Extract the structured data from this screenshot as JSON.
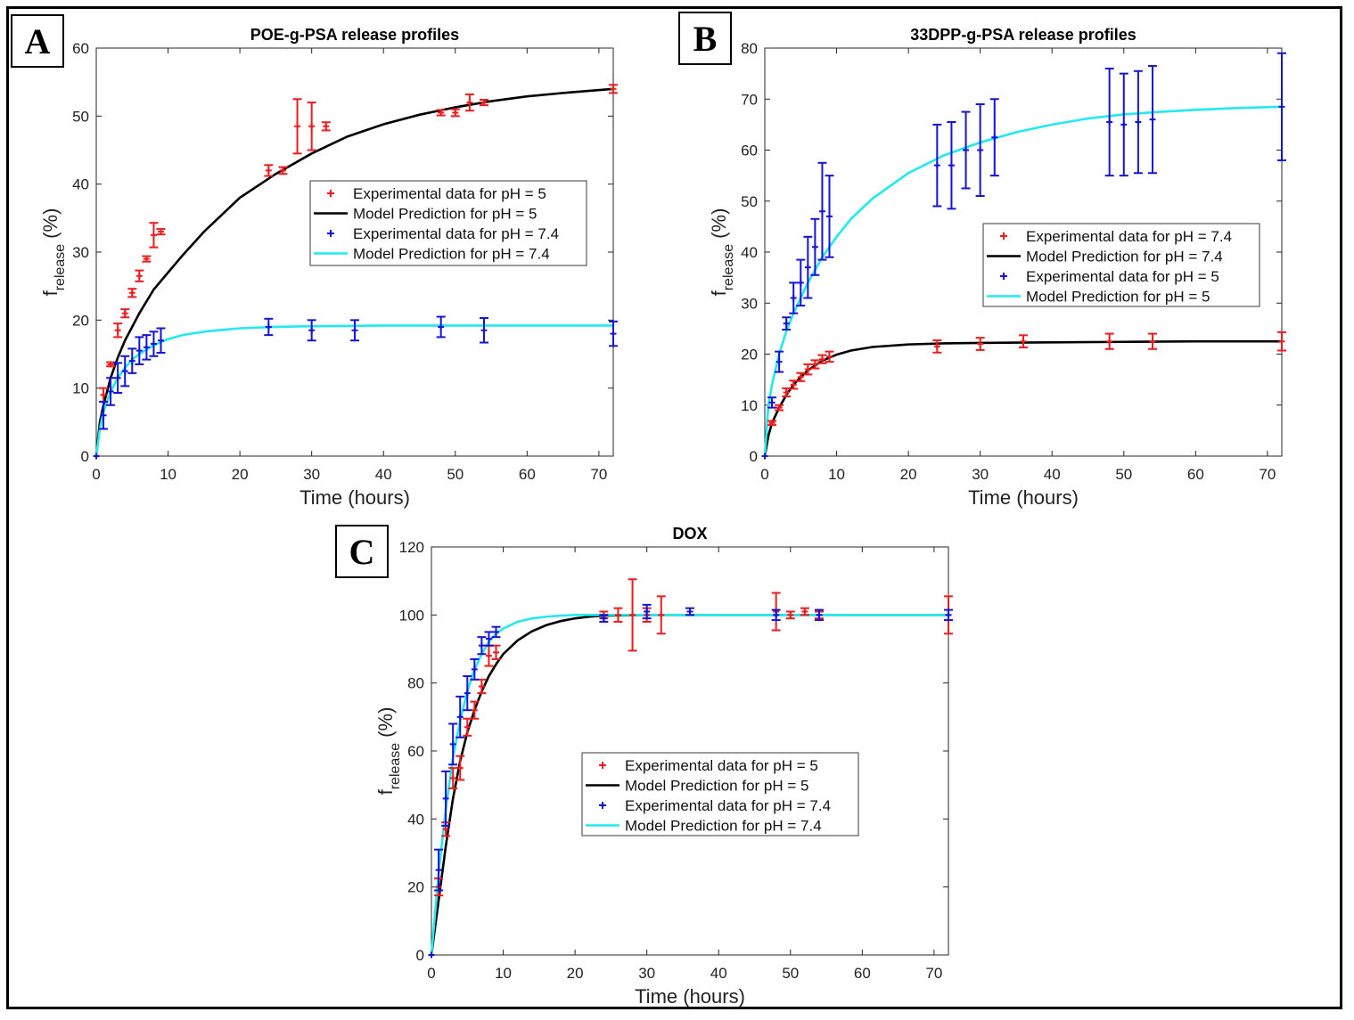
{
  "panels": [
    {
      "label": "A"
    },
    {
      "label": "B"
    },
    {
      "label": "C"
    }
  ],
  "colors": {
    "exp_red": "#ee1c1c",
    "model_black": "#000000",
    "exp_blue": "#1414d8",
    "model_cyan": "#22e8f0"
  },
  "chart_data": [
    {
      "type": "line",
      "title": "POE-g-PSA release profiles",
      "xlabel": "Time (hours)",
      "ylabel_main": "f",
      "ylabel_sub": "release",
      "ylabel_unit": "(%)",
      "xlim": [
        0,
        72
      ],
      "ylim": [
        0,
        60
      ],
      "xticks": [
        0,
        10,
        20,
        30,
        40,
        50,
        60,
        70
      ],
      "yticks": [
        0,
        10,
        20,
        30,
        40,
        50,
        60
      ],
      "legend_position": "center-right",
      "series": [
        {
          "name": "Experimental data for pH = 5",
          "kind": "scatter",
          "color": "#ee1c1c",
          "x": [
            0,
            1,
            2,
            3,
            4,
            5,
            6,
            7,
            8,
            9,
            24,
            26,
            28,
            30,
            32,
            48,
            50,
            52,
            54,
            72
          ],
          "y": [
            0,
            9,
            13.5,
            18.5,
            21,
            24,
            26.5,
            29,
            32.5,
            33,
            42,
            42,
            48.5,
            48.5,
            48.5,
            50.5,
            50.5,
            52,
            52,
            54
          ],
          "err": [
            0,
            1,
            0.3,
            1,
            0.6,
            0.6,
            0.8,
            0.4,
            1.8,
            0.4,
            0.8,
            0.5,
            4,
            3.5,
            0.6,
            0.4,
            0.5,
            1.2,
            0.4,
            0.6
          ]
        },
        {
          "name": "Model Prediction for pH = 5",
          "kind": "line",
          "color": "#000000",
          "x": [
            0,
            0.5,
            1,
            2,
            3,
            4,
            6,
            8,
            10,
            12,
            15,
            20,
            25,
            30,
            35,
            40,
            45,
            50,
            55,
            60,
            65,
            72
          ],
          "y": [
            0,
            5,
            7.5,
            11.5,
            14.5,
            17,
            21,
            24.5,
            27,
            29.5,
            33,
            38,
            41.5,
            44.5,
            47,
            48.8,
            50.2,
            51.3,
            52.2,
            52.9,
            53.4,
            54
          ]
        },
        {
          "name": "Experimental data for pH = 7.4",
          "kind": "scatter",
          "color": "#1414d8",
          "x": [
            0,
            1,
            2,
            3,
            4,
            5,
            6,
            7,
            8,
            9,
            24,
            30,
            36,
            48,
            54,
            72
          ],
          "y": [
            0,
            6,
            9.5,
            11.5,
            12.5,
            14,
            15.5,
            16,
            16.5,
            17,
            19,
            18.5,
            18.5,
            19,
            18.5,
            18
          ],
          "err": [
            0,
            2,
            2,
            2.2,
            2.2,
            1.8,
            2,
            1.8,
            1.8,
            1.8,
            1.2,
            1.5,
            1.5,
            1.5,
            1.8,
            1.8
          ]
        },
        {
          "name": "Model Prediction for pH = 7.4",
          "kind": "line",
          "color": "#22e8f0",
          "x": [
            0,
            0.5,
            1,
            2,
            3,
            4,
            5,
            6,
            8,
            10,
            12,
            15,
            20,
            25,
            30,
            40,
            50,
            60,
            72
          ],
          "y": [
            0,
            4,
            6.5,
            9.5,
            11.5,
            13,
            14.2,
            15,
            16.3,
            17.2,
            17.8,
            18.3,
            18.8,
            19,
            19.1,
            19.2,
            19.2,
            19.2,
            19.2
          ]
        }
      ]
    },
    {
      "type": "line",
      "title": "33DPP-g-PSA release profiles",
      "xlabel": "Time (hours)",
      "ylabel_main": "f",
      "ylabel_sub": "release",
      "ylabel_unit": "(%)",
      "xlim": [
        0,
        72
      ],
      "ylim": [
        0,
        80
      ],
      "xticks": [
        0,
        10,
        20,
        30,
        40,
        50,
        60,
        70
      ],
      "yticks": [
        0,
        10,
        20,
        30,
        40,
        50,
        60,
        70,
        80
      ],
      "legend_position": "center-right",
      "series": [
        {
          "name": "Experimental data for pH = 7.4",
          "kind": "scatter",
          "color": "#ee1c1c",
          "x": [
            0,
            1,
            2,
            3,
            4,
            5,
            6,
            7,
            8,
            9,
            24,
            30,
            36,
            48,
            54,
            72
          ],
          "y": [
            0,
            6.5,
            9.5,
            12.5,
            14,
            15.5,
            17,
            18,
            19,
            19.5,
            21.5,
            22,
            22.5,
            22.5,
            22.5,
            22.5
          ],
          "err": [
            0,
            0.4,
            0.5,
            0.8,
            0.8,
            0.8,
            1,
            0.8,
            0.8,
            1,
            1.2,
            1.2,
            1.2,
            1.5,
            1.5,
            1.8
          ]
        },
        {
          "name": "Model Prediction for pH = 7.4",
          "kind": "line",
          "color": "#000000",
          "x": [
            0,
            0.5,
            1,
            2,
            3,
            4,
            5,
            6,
            8,
            10,
            12,
            15,
            20,
            25,
            30,
            40,
            50,
            60,
            72
          ],
          "y": [
            0,
            4,
            6.5,
            9.5,
            12,
            14,
            15.5,
            16.8,
            18.7,
            19.9,
            20.7,
            21.4,
            21.9,
            22.1,
            22.2,
            22.3,
            22.4,
            22.5,
            22.5
          ]
        },
        {
          "name": "Experimental data for pH = 5",
          "kind": "scatter",
          "color": "#1414d8",
          "x": [
            0,
            1,
            2,
            3,
            4,
            5,
            6,
            7,
            8,
            9,
            24,
            26,
            28,
            30,
            32,
            48,
            50,
            52,
            54,
            72
          ],
          "y": [
            0,
            10.5,
            18.5,
            26,
            31,
            34,
            37,
            41,
            48,
            47,
            57,
            57,
            60,
            60,
            62.5,
            65.5,
            65,
            65.5,
            66,
            68.5
          ],
          "err": [
            0,
            1,
            2,
            1.2,
            3,
            4.5,
            6,
            5.5,
            9.5,
            8,
            8,
            8.5,
            7.5,
            9,
            7.5,
            10.5,
            10,
            10,
            10.5,
            10.5
          ]
        },
        {
          "name": "Model Prediction for pH = 5",
          "kind": "line",
          "color": "#22e8f0",
          "x": [
            0,
            0.5,
            1,
            2,
            3,
            4,
            6,
            8,
            10,
            12,
            15,
            20,
            25,
            30,
            35,
            40,
            45,
            50,
            55,
            60,
            65,
            72
          ],
          "y": [
            0,
            10,
            14,
            20,
            24.5,
            28,
            34,
            39,
            43,
            46.5,
            50.5,
            55.5,
            59,
            61.5,
            63.5,
            65,
            66.2,
            67,
            67.5,
            67.9,
            68.2,
            68.5
          ]
        }
      ]
    },
    {
      "type": "line",
      "title": "DOX",
      "xlabel": "Time (hours)",
      "ylabel_main": "f",
      "ylabel_sub": "release",
      "ylabel_unit": "(%)",
      "xlim": [
        0,
        72
      ],
      "ylim": [
        0,
        120
      ],
      "xticks": [
        0,
        10,
        20,
        30,
        40,
        50,
        60,
        70
      ],
      "yticks": [
        0,
        20,
        40,
        60,
        80,
        100,
        120
      ],
      "legend_position": "center-right",
      "series": [
        {
          "name": "Experimental data for pH = 5",
          "kind": "scatter",
          "color": "#ee1c1c",
          "x": [
            0,
            1,
            2,
            3,
            4,
            5,
            6,
            7,
            8,
            9,
            24,
            26,
            28,
            30,
            32,
            48,
            50,
            52,
            54,
            72
          ],
          "y": [
            0,
            20,
            37,
            52,
            55,
            67,
            72,
            79,
            88,
            89,
            100,
            100,
            100,
            100,
            100,
            101,
            100,
            101,
            100,
            100
          ],
          "err": [
            0,
            2.5,
            2,
            3,
            3.5,
            2.5,
            2.5,
            2,
            3,
            2,
            1,
            2,
            10.5,
            2,
            5.5,
            5.5,
            1,
            1,
            1,
            5.5
          ]
        },
        {
          "name": "Model Prediction for pH = 5",
          "kind": "line",
          "color": "#000000",
          "x": [
            0,
            0.5,
            1,
            2,
            3,
            4,
            5,
            6,
            7,
            8,
            9,
            10,
            12,
            14,
            16,
            18,
            20,
            22,
            24,
            30,
            40,
            50,
            60,
            72
          ],
          "y": [
            0,
            8,
            16,
            32,
            46,
            57,
            65.5,
            72,
            77.5,
            82,
            85.5,
            88.5,
            92.5,
            95.2,
            97,
            98.2,
            99,
            99.5,
            99.8,
            100,
            100,
            100,
            100,
            100
          ]
        },
        {
          "name": "Experimental data for pH = 7.4",
          "kind": "scatter",
          "color": "#1414d8",
          "x": [
            0,
            1,
            2,
            3,
            4,
            5,
            6,
            7,
            8,
            9,
            24,
            30,
            36,
            48,
            54,
            72
          ],
          "y": [
            0,
            25,
            46,
            62,
            70,
            77,
            84,
            91,
            93,
            95,
            99,
            101,
            101,
            100,
            100,
            100
          ],
          "err": [
            0,
            6,
            8,
            6,
            6,
            5,
            3,
            2.5,
            2,
            1.5,
            1,
            2,
            1,
            1.5,
            1.5,
            1.5
          ]
        },
        {
          "name": "Model Prediction for pH = 7.4",
          "kind": "line",
          "color": "#22e8f0",
          "x": [
            0,
            0.5,
            1,
            2,
            3,
            4,
            5,
            6,
            7,
            8,
            9,
            10,
            12,
            14,
            16,
            18,
            20,
            24,
            30,
            40,
            50,
            60,
            72
          ],
          "y": [
            0,
            12,
            24,
            43,
            58,
            69,
            77.5,
            84,
            88.5,
            92,
            94.5,
            96,
            98,
            99,
            99.5,
            99.8,
            100,
            100,
            100,
            100,
            100,
            100,
            100
          ]
        }
      ]
    }
  ]
}
